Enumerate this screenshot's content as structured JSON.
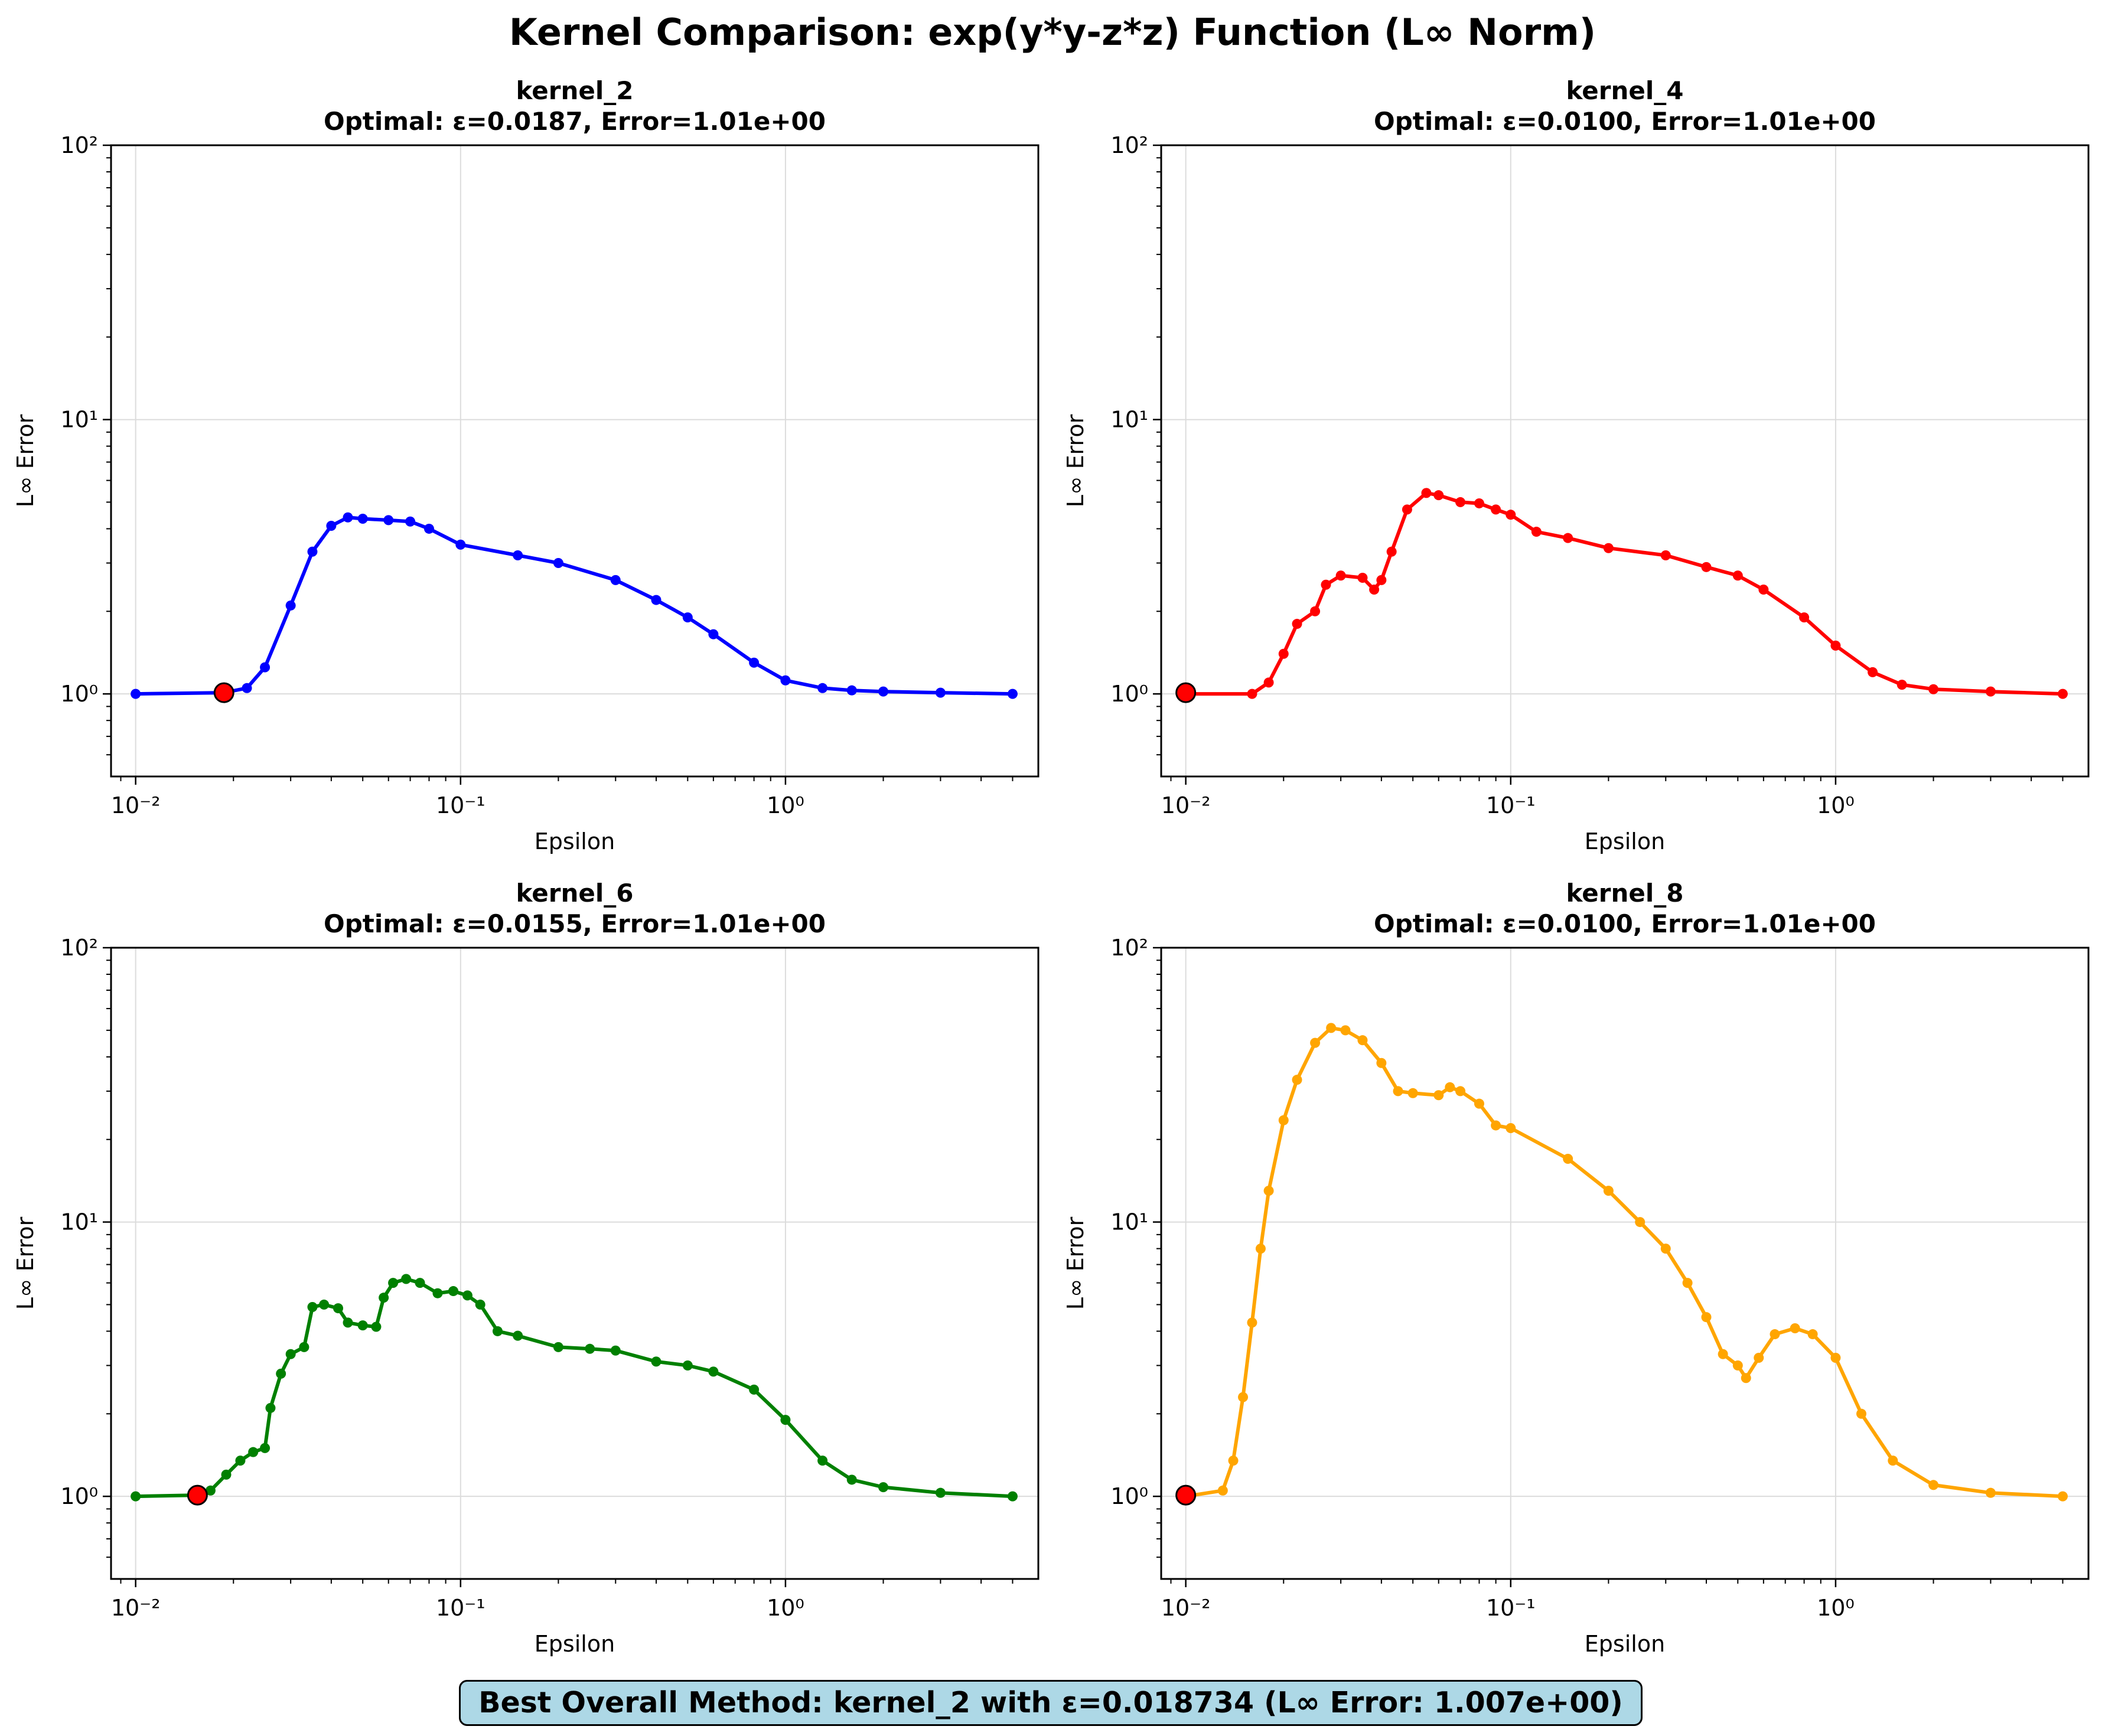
{
  "figure": {
    "title": "Kernel Comparison: exp(y*y-z*z) Function (L∞ Norm)",
    "summary": "Best Overall Method: kernel_2 with ε=0.018734 (L∞ Error: 1.007e+00)",
    "summary_box_color": "#add8e6"
  },
  "chart_data": [
    {
      "type": "line",
      "title": "kernel_2",
      "subtitle": "Optimal: ε=0.0187, Error=1.01e+00",
      "xlabel": "Epsilon",
      "ylabel": "L∞ Error",
      "xscale": "log",
      "yscale": "log",
      "xlim": [
        0.0084,
        6.0
      ],
      "ylim": [
        0.5,
        100
      ],
      "xticks": [
        {
          "value": 0.01,
          "label": "10⁻²"
        },
        {
          "value": 0.1,
          "label": "10⁻¹"
        },
        {
          "value": 1,
          "label": "10⁰"
        }
      ],
      "yticks": [
        {
          "value": 1,
          "label": "10⁰"
        },
        {
          "value": 10,
          "label": "10¹"
        },
        {
          "value": 100,
          "label": "10²"
        }
      ],
      "grid": true,
      "color": "#0000ff",
      "optimal": {
        "x": 0.0187,
        "y": 1.01,
        "color": "#ff0000"
      },
      "series": [
        {
          "x": [
            0.01,
            0.0187,
            0.022,
            0.025,
            0.03,
            0.035,
            0.04,
            0.045,
            0.05,
            0.06,
            0.07,
            0.08,
            0.1,
            0.15,
            0.2,
            0.3,
            0.4,
            0.5,
            0.6,
            0.8,
            1.0,
            1.3,
            1.6,
            2.0,
            3.0,
            5.0
          ],
          "y": [
            1.0,
            1.01,
            1.05,
            1.25,
            2.1,
            3.3,
            4.1,
            4.4,
            4.35,
            4.3,
            4.25,
            4.0,
            3.5,
            3.2,
            3.0,
            2.6,
            2.2,
            1.9,
            1.65,
            1.3,
            1.12,
            1.05,
            1.03,
            1.02,
            1.01,
            1.0
          ]
        }
      ]
    },
    {
      "type": "line",
      "title": "kernel_4",
      "subtitle": "Optimal: ε=0.0100, Error=1.01e+00",
      "xlabel": "Epsilon",
      "ylabel": "L∞ Error",
      "xscale": "log",
      "yscale": "log",
      "xlim": [
        0.0084,
        6.0
      ],
      "ylim": [
        0.5,
        100
      ],
      "xticks": [
        {
          "value": 0.01,
          "label": "10⁻²"
        },
        {
          "value": 0.1,
          "label": "10⁻¹"
        },
        {
          "value": 1,
          "label": "10⁰"
        }
      ],
      "yticks": [
        {
          "value": 1,
          "label": "10⁰"
        },
        {
          "value": 10,
          "label": "10¹"
        },
        {
          "value": 100,
          "label": "10²"
        }
      ],
      "grid": true,
      "color": "#ff0000",
      "optimal": {
        "x": 0.01,
        "y": 1.01,
        "color": "#ff0000"
      },
      "series": [
        {
          "x": [
            0.01,
            0.016,
            0.018,
            0.02,
            0.022,
            0.025,
            0.027,
            0.03,
            0.035,
            0.038,
            0.04,
            0.043,
            0.048,
            0.055,
            0.06,
            0.07,
            0.08,
            0.09,
            0.1,
            0.12,
            0.15,
            0.2,
            0.3,
            0.4,
            0.5,
            0.6,
            0.8,
            1.0,
            1.3,
            1.6,
            2.0,
            3.0,
            5.0
          ],
          "y": [
            1.0,
            1.0,
            1.1,
            1.4,
            1.8,
            2.0,
            2.5,
            2.7,
            2.65,
            2.4,
            2.6,
            3.3,
            4.7,
            5.4,
            5.3,
            5.0,
            4.95,
            4.7,
            4.5,
            3.9,
            3.7,
            3.4,
            3.2,
            2.9,
            2.7,
            2.4,
            1.9,
            1.5,
            1.2,
            1.08,
            1.04,
            1.02,
            1.0
          ]
        }
      ]
    },
    {
      "type": "line",
      "title": "kernel_6",
      "subtitle": "Optimal: ε=0.0155, Error=1.01e+00",
      "xlabel": "Epsilon",
      "ylabel": "L∞ Error",
      "xscale": "log",
      "yscale": "log",
      "xlim": [
        0.0084,
        6.0
      ],
      "ylim": [
        0.5,
        100
      ],
      "xticks": [
        {
          "value": 0.01,
          "label": "10⁻²"
        },
        {
          "value": 0.1,
          "label": "10⁻¹"
        },
        {
          "value": 1,
          "label": "10⁰"
        }
      ],
      "yticks": [
        {
          "value": 1,
          "label": "10⁰"
        },
        {
          "value": 10,
          "label": "10¹"
        },
        {
          "value": 100,
          "label": "10²"
        }
      ],
      "grid": true,
      "color": "#008000",
      "optimal": {
        "x": 0.0155,
        "y": 1.01,
        "color": "#ff0000"
      },
      "series": [
        {
          "x": [
            0.01,
            0.0155,
            0.017,
            0.019,
            0.021,
            0.023,
            0.025,
            0.026,
            0.028,
            0.03,
            0.033,
            0.035,
            0.038,
            0.042,
            0.045,
            0.05,
            0.055,
            0.058,
            0.062,
            0.068,
            0.075,
            0.085,
            0.095,
            0.105,
            0.115,
            0.13,
            0.15,
            0.2,
            0.25,
            0.3,
            0.4,
            0.5,
            0.6,
            0.8,
            1.0,
            1.3,
            1.6,
            2.0,
            3.0,
            5.0
          ],
          "y": [
            1.0,
            1.01,
            1.05,
            1.2,
            1.35,
            1.45,
            1.5,
            2.1,
            2.8,
            3.3,
            3.5,
            4.9,
            5.0,
            4.85,
            4.3,
            4.2,
            4.15,
            5.3,
            6.0,
            6.2,
            6.0,
            5.5,
            5.6,
            5.4,
            5.0,
            4.0,
            3.85,
            3.5,
            3.45,
            3.4,
            3.1,
            3.0,
            2.85,
            2.45,
            1.9,
            1.35,
            1.15,
            1.08,
            1.03,
            1.0
          ]
        }
      ]
    },
    {
      "type": "line",
      "title": "kernel_8",
      "subtitle": "Optimal: ε=0.0100, Error=1.01e+00",
      "xlabel": "Epsilon",
      "ylabel": "L∞ Error",
      "xscale": "log",
      "yscale": "log",
      "xlim": [
        0.0084,
        6.0
      ],
      "ylim": [
        0.5,
        100
      ],
      "xticks": [
        {
          "value": 0.01,
          "label": "10⁻²"
        },
        {
          "value": 0.1,
          "label": "10⁻¹"
        },
        {
          "value": 1,
          "label": "10⁰"
        }
      ],
      "yticks": [
        {
          "value": 1,
          "label": "10⁰"
        },
        {
          "value": 10,
          "label": "10¹"
        },
        {
          "value": 100,
          "label": "10²"
        }
      ],
      "grid": true,
      "color": "#ffa500",
      "optimal": {
        "x": 0.01,
        "y": 1.01,
        "color": "#ff0000"
      },
      "series": [
        {
          "x": [
            0.01,
            0.013,
            0.014,
            0.015,
            0.016,
            0.017,
            0.018,
            0.02,
            0.022,
            0.025,
            0.028,
            0.031,
            0.035,
            0.04,
            0.045,
            0.05,
            0.06,
            0.065,
            0.07,
            0.08,
            0.09,
            0.1,
            0.15,
            0.2,
            0.25,
            0.3,
            0.35,
            0.4,
            0.45,
            0.5,
            0.53,
            0.58,
            0.65,
            0.75,
            0.85,
            1.0,
            1.2,
            1.5,
            2.0,
            3.0,
            5.0
          ],
          "y": [
            1.0,
            1.05,
            1.35,
            2.3,
            4.3,
            8.0,
            13.0,
            23.5,
            33.0,
            45.0,
            51.0,
            50.0,
            46.0,
            38.0,
            30.0,
            29.5,
            29.0,
            31.0,
            30.0,
            27.0,
            22.5,
            22.0,
            17.0,
            13.0,
            10.0,
            8.0,
            6.0,
            4.5,
            3.3,
            3.0,
            2.7,
            3.2,
            3.9,
            4.1,
            3.9,
            3.2,
            2.0,
            1.35,
            1.1,
            1.03,
            1.0
          ]
        }
      ]
    }
  ]
}
